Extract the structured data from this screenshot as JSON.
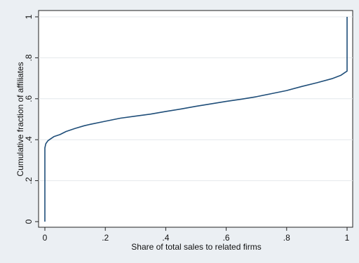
{
  "chart_data": {
    "type": "line",
    "title": "",
    "xlabel": "Share of total sales to related firms",
    "ylabel": "Cumulative fraction of affiliates",
    "xlim": [
      0,
      1
    ],
    "ylim": [
      0,
      1
    ],
    "x_ticks": [
      {
        "value": 0,
        "label": "0"
      },
      {
        "value": 0.2,
        "label": ".2"
      },
      {
        "value": 0.4,
        "label": ".4"
      },
      {
        "value": 0.6,
        "label": ".6"
      },
      {
        "value": 0.8,
        "label": ".8"
      },
      {
        "value": 1,
        "label": "1"
      }
    ],
    "y_ticks": [
      {
        "value": 0,
        "label": "0"
      },
      {
        "value": 0.2,
        "label": ".2"
      },
      {
        "value": 0.4,
        "label": ".4"
      },
      {
        "value": 0.6,
        "label": ".6"
      },
      {
        "value": 0.8,
        "label": ".8"
      },
      {
        "value": 1,
        "label": "1"
      }
    ],
    "grid": "horizontal",
    "legend": "none",
    "colors": {
      "line": "#1f4e79",
      "plot_bg": "#ffffff",
      "outer_bg": "#ebeff3",
      "grid": "#e4e8ec",
      "frame": "#222222"
    },
    "series": [
      {
        "x": [
          0,
          0,
          0.003,
          0.01,
          0.02,
          0.03,
          0.05,
          0.07,
          0.1,
          0.13,
          0.15,
          0.2,
          0.25,
          0.3,
          0.35,
          0.4,
          0.45,
          0.5,
          0.55,
          0.6,
          0.65,
          0.7,
          0.75,
          0.8,
          0.85,
          0.9,
          0.95,
          0.98,
          0.995,
          1,
          1
        ],
        "y": [
          0,
          0.36,
          0.38,
          0.395,
          0.405,
          0.415,
          0.425,
          0.44,
          0.455,
          0.468,
          0.475,
          0.49,
          0.505,
          0.515,
          0.525,
          0.538,
          0.55,
          0.563,
          0.575,
          0.587,
          0.598,
          0.61,
          0.625,
          0.64,
          0.66,
          0.678,
          0.698,
          0.715,
          0.73,
          0.735,
          1
        ]
      }
    ]
  }
}
